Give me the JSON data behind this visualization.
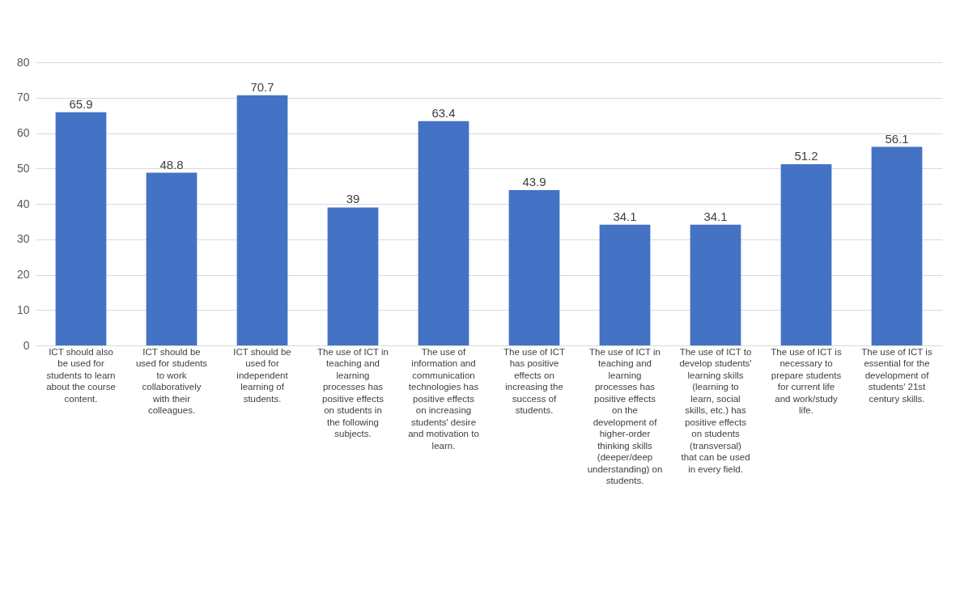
{
  "chart_data": {
    "type": "bar",
    "categories": [
      "ICT should also be used for students to learn about the course content.",
      "ICT should be used for students to work collaboratively with their colleagues.",
      "ICT should be used for independent learning of students.",
      "The use of ICT in teaching and learning processes has positive effects on students in the following subjects.",
      "The use of information and communication technologies has positive effects on increasing students' desire and motivation to learn.",
      "The use of ICT has positive effects on increasing the success of students.",
      "The use of ICT in teaching and learning processes has positive effects on the development of higher-order thinking skills (deeper/deep understanding) on students.",
      "The use of ICT to develop students' learning skills (learning to learn, social skills, etc.) has positive effects on students (transversal) that can be used in every field.",
      "The use of ICT is necessary to prepare students for current life and work/study life.",
      "The use of ICT is essential for the development of students' 21st century skills."
    ],
    "values": [
      65.9,
      48.8,
      70.7,
      39,
      63.4,
      43.9,
      34.1,
      34.1,
      51.2,
      56.1
    ],
    "color": "#4472c4",
    "ylim": [
      0,
      80
    ],
    "yticks": [
      0,
      10,
      20,
      30,
      40,
      50,
      60,
      70,
      80
    ],
    "grid": "y",
    "data_labels": true
  }
}
